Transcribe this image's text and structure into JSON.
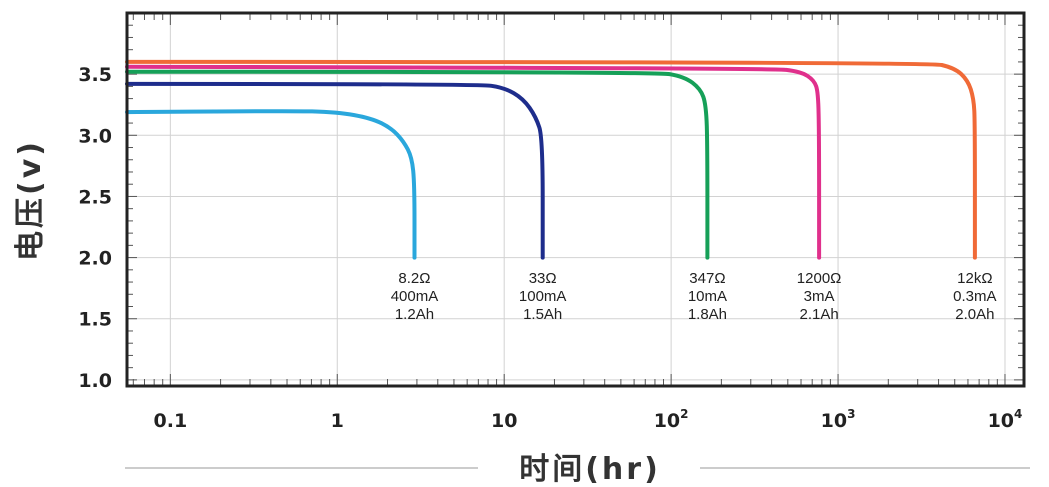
{
  "chart_data": {
    "type": "line",
    "xlabel": "时间(hr)",
    "ylabel": "电压(v)",
    "x_scale": "log",
    "xlim": [
      0.055,
      13000
    ],
    "ylim": [
      0.95,
      4.0
    ],
    "grid": true,
    "x_ticks": [
      {
        "value": 0.1,
        "label": "0.1"
      },
      {
        "value": 1,
        "label": "1"
      },
      {
        "value": 10,
        "label": "10"
      },
      {
        "value": 100,
        "base": "10",
        "exp": "2"
      },
      {
        "value": 1000,
        "base": "10",
        "exp": "3"
      },
      {
        "value": 10000,
        "base": "10",
        "exp": "4"
      }
    ],
    "y_ticks": [
      {
        "value": 1.0,
        "label": "1.0"
      },
      {
        "value": 1.5,
        "label": "1.5"
      },
      {
        "value": 2.0,
        "label": "2.0"
      },
      {
        "value": 2.5,
        "label": "2.5"
      },
      {
        "value": 3.0,
        "label": "3.0"
      },
      {
        "value": 3.5,
        "label": "3.5"
      }
    ],
    "series": [
      {
        "color": "#2aa7dc",
        "labels": [
          "8.2Ω",
          "400mA",
          "1.2Ah"
        ],
        "points": [
          [
            0.055,
            3.19
          ],
          [
            0.5,
            3.2
          ],
          [
            1.0,
            3.19
          ],
          [
            1.6,
            3.14
          ],
          [
            2.1,
            3.06
          ],
          [
            2.5,
            2.95
          ],
          [
            2.8,
            2.82
          ],
          [
            2.9,
            2.6
          ],
          [
            2.9,
            2.0
          ]
        ]
      },
      {
        "color": "#1e2d8c",
        "labels": [
          "33Ω",
          "100mA",
          "1.5Ah"
        ],
        "points": [
          [
            0.055,
            3.42
          ],
          [
            7.0,
            3.42
          ],
          [
            10.0,
            3.39
          ],
          [
            13.0,
            3.3
          ],
          [
            15.5,
            3.15
          ],
          [
            17.0,
            2.98
          ],
          [
            17.0,
            2.0
          ]
        ]
      },
      {
        "color": "#16a058",
        "labels": [
          "347Ω",
          "10mA",
          "1.8Ah"
        ],
        "points": [
          [
            0.055,
            3.52
          ],
          [
            80,
            3.52
          ],
          [
            120,
            3.48
          ],
          [
            150,
            3.38
          ],
          [
            162,
            3.25
          ],
          [
            165,
            2.9
          ],
          [
            165,
            2.0
          ]
        ]
      },
      {
        "color": "#e0308c",
        "labels": [
          "1200Ω",
          "3mA",
          "2.1Ah"
        ],
        "points": [
          [
            0.055,
            3.56
          ],
          [
            400,
            3.55
          ],
          [
            600,
            3.52
          ],
          [
            720,
            3.45
          ],
          [
            760,
            3.35
          ],
          [
            770,
            3.0
          ],
          [
            770,
            2.0
          ]
        ]
      },
      {
        "color": "#f06a37",
        "labels": [
          "12kΩ",
          "0.3mA",
          "2.0Ah"
        ],
        "points": [
          [
            0.055,
            3.6
          ],
          [
            3500,
            3.6
          ],
          [
            5000,
            3.55
          ],
          [
            6000,
            3.45
          ],
          [
            6500,
            3.3
          ],
          [
            6600,
            3.1
          ],
          [
            6600,
            2.0
          ]
        ]
      }
    ]
  }
}
